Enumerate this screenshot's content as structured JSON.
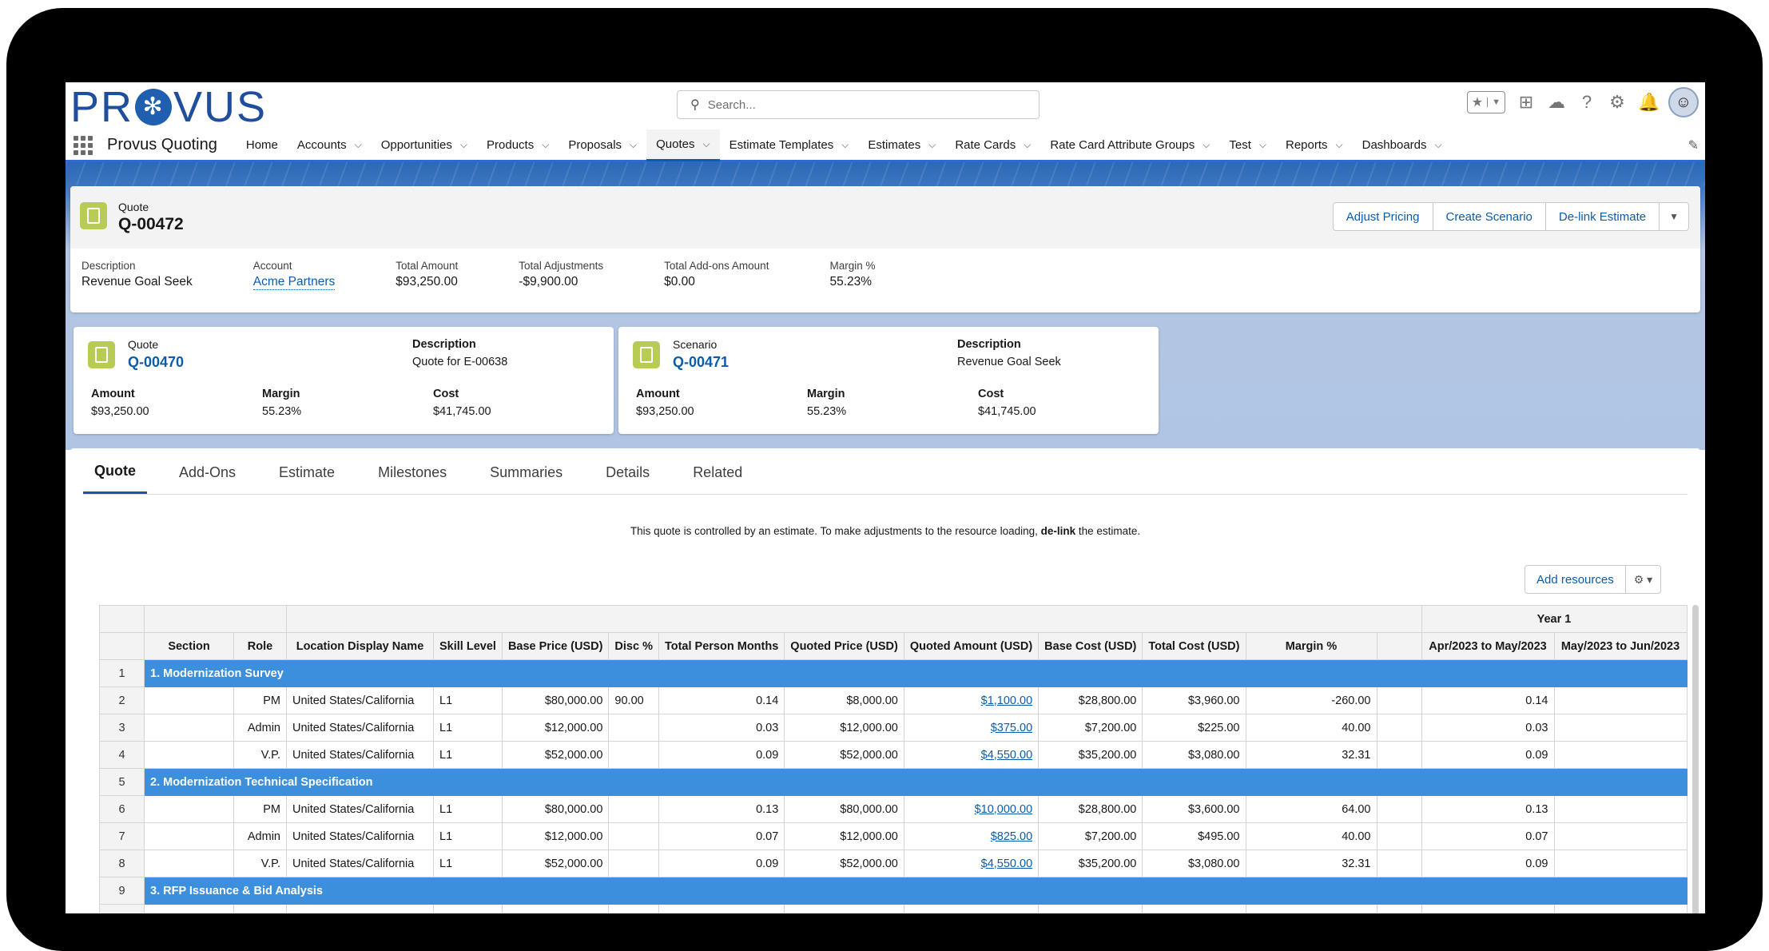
{
  "header": {
    "logo": "PROVUS",
    "search_placeholder": "Search...",
    "app_name": "Provus Quoting",
    "nav": [
      {
        "label": "Home",
        "chevron": false
      },
      {
        "label": "Accounts",
        "chevron": true
      },
      {
        "label": "Opportunities",
        "chevron": true
      },
      {
        "label": "Products",
        "chevron": true
      },
      {
        "label": "Proposals",
        "chevron": true
      },
      {
        "label": "Quotes",
        "chevron": true,
        "active": true
      },
      {
        "label": "Estimate Templates",
        "chevron": true
      },
      {
        "label": "Estimates",
        "chevron": true
      },
      {
        "label": "Rate Cards",
        "chevron": true
      },
      {
        "label": "Rate Card Attribute Groups",
        "chevron": true
      },
      {
        "label": "Test",
        "chevron": true
      },
      {
        "label": "Reports",
        "chevron": true
      },
      {
        "label": "Dashboards",
        "chevron": true
      }
    ]
  },
  "record": {
    "type": "Quote",
    "name": "Q-00472",
    "buttons": [
      "Adjust Pricing",
      "Create Scenario",
      "De-link Estimate"
    ],
    "fields": [
      {
        "label": "Description",
        "value": "Revenue Goal Seek"
      },
      {
        "label": "Account",
        "value": "Acme Partners",
        "link": true
      },
      {
        "label": "Total Amount",
        "value": "$93,250.00"
      },
      {
        "label": "Total Adjustments",
        "value": "-$9,900.00"
      },
      {
        "label": "Total Add-ons Amount",
        "value": "$0.00"
      },
      {
        "label": "Margin %",
        "value": "55.23%"
      }
    ]
  },
  "cards": [
    {
      "type": "Quote",
      "name": "Q-00470",
      "desc_label": "Description",
      "desc": "Quote for E-00638",
      "amount_label": "Amount",
      "amount": "$93,250.00",
      "margin_label": "Margin",
      "margin": "55.23%",
      "cost_label": "Cost",
      "cost": "$41,745.00"
    },
    {
      "type": "Scenario",
      "name": "Q-00471",
      "desc_label": "Description",
      "desc": "Revenue Goal Seek",
      "amount_label": "Amount",
      "amount": "$93,250.00",
      "margin_label": "Margin",
      "margin": "55.23%",
      "cost_label": "Cost",
      "cost": "$41,745.00"
    }
  ],
  "tabs": [
    "Quote",
    "Add-Ons",
    "Estimate",
    "Milestones",
    "Summaries",
    "Details",
    "Related"
  ],
  "notice": {
    "pre": "This quote is controlled by an estimate. To make adjustments to the resource loading, ",
    "bold": "de-link",
    "post": " the estimate."
  },
  "add_resources": "Add resources",
  "grid": {
    "year_label": "Year 1",
    "columns": [
      "Section",
      "Role",
      "Location Display Name",
      "Skill Level",
      "Base Price (USD)",
      "Disc %",
      "Total Person Months",
      "Quoted Price (USD)",
      "Quoted Amount (USD)",
      "Base Cost (USD)",
      "Total Cost (USD)",
      "Margin %",
      "",
      "Apr/2023 to May/2023",
      "May/2023 to Jun/2023"
    ],
    "rows": [
      {
        "num": "1",
        "section": "1. Modernization Survey"
      },
      {
        "num": "2",
        "role": "PM",
        "loc": "United States/California",
        "skill": "L1",
        "base_price": "$80,000.00",
        "disc": "90.00",
        "tpm": "0.14",
        "quoted_price": "$8,000.00",
        "quoted_amount": "$1,100.00",
        "base_cost": "$28,800.00",
        "total_cost": "$3,960.00",
        "margin": "-260.00",
        "apr": "0.14"
      },
      {
        "num": "3",
        "role": "Admin",
        "loc": "United States/California",
        "skill": "L1",
        "base_price": "$12,000.00",
        "disc": "",
        "tpm": "0.03",
        "quoted_price": "$12,000.00",
        "quoted_amount": "$375.00",
        "base_cost": "$7,200.00",
        "total_cost": "$225.00",
        "margin": "40.00",
        "apr": "0.03"
      },
      {
        "num": "4",
        "role": "V.P.",
        "loc": "United States/California",
        "skill": "L1",
        "base_price": "$52,000.00",
        "disc": "",
        "tpm": "0.09",
        "quoted_price": "$52,000.00",
        "quoted_amount": "$4,550.00",
        "base_cost": "$35,200.00",
        "total_cost": "$3,080.00",
        "margin": "32.31",
        "apr": "0.09"
      },
      {
        "num": "5",
        "section": "2. Modernization Technical Specification"
      },
      {
        "num": "6",
        "role": "PM",
        "loc": "United States/California",
        "skill": "L1",
        "base_price": "$80,000.00",
        "disc": "",
        "tpm": "0.13",
        "quoted_price": "$80,000.00",
        "quoted_amount": "$10,000.00",
        "base_cost": "$28,800.00",
        "total_cost": "$3,600.00",
        "margin": "64.00",
        "apr": "0.13"
      },
      {
        "num": "7",
        "role": "Admin",
        "loc": "United States/California",
        "skill": "L1",
        "base_price": "$12,000.00",
        "disc": "",
        "tpm": "0.07",
        "quoted_price": "$12,000.00",
        "quoted_amount": "$825.00",
        "base_cost": "$7,200.00",
        "total_cost": "$495.00",
        "margin": "40.00",
        "apr": "0.07"
      },
      {
        "num": "8",
        "role": "V.P.",
        "loc": "United States/California",
        "skill": "L1",
        "base_price": "$52,000.00",
        "disc": "",
        "tpm": "0.09",
        "quoted_price": "$52,000.00",
        "quoted_amount": "$4,550.00",
        "base_cost": "$35,200.00",
        "total_cost": "$3,080.00",
        "margin": "32.31",
        "apr": "0.09"
      },
      {
        "num": "9",
        "section": "3. RFP Issuance & Bid Analysis"
      },
      {
        "num": "",
        "role": "",
        "loc": "",
        "skill": "",
        "base_price": "",
        "disc": "",
        "tpm": "",
        "quoted_price": "",
        "quoted_amount": "",
        "base_cost": "",
        "total_cost": "",
        "margin": "",
        "apr": ""
      }
    ]
  }
}
